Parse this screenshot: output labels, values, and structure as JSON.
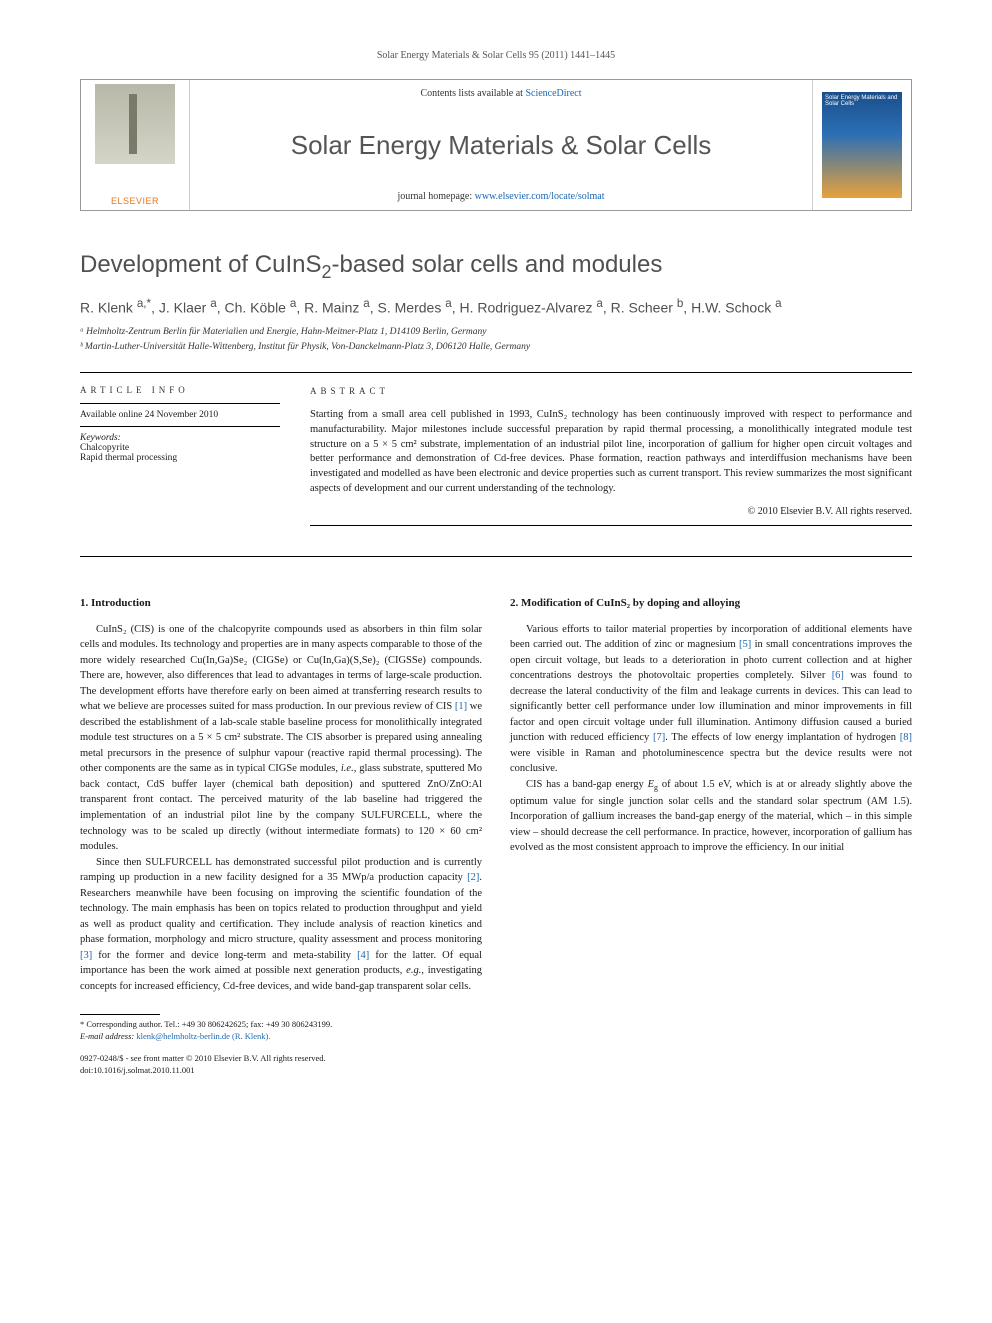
{
  "banner": {
    "citation": "Solar Energy Materials & Solar Cells 95 (2011) 1441–1445",
    "contents_text": "Contents lists available at ",
    "contents_link": "ScienceDirect",
    "journal_title": "Solar Energy Materials & Solar Cells",
    "homepage_text": "journal homepage: ",
    "homepage_link": "www.elsevier.com/locate/solmat",
    "publisher": "ELSEVIER",
    "cover_text": "Solar Energy Materials and Solar Cells"
  },
  "article": {
    "title_pre": "Development of CuInS",
    "title_sub": "2",
    "title_post": "-based solar cells and modules",
    "authors_html": "R. Klenk <sup>a,*</sup>, J. Klaer <sup>a</sup>, Ch. Köble <sup>a</sup>, R. Mainz <sup>a</sup>, S. Merdes <sup>a</sup>, H. Rodriguez-Alvarez <sup>a</sup>, R. Scheer <sup>b</sup>, H.W. Schock <sup>a</sup>",
    "affiliations": [
      "ᵃ Helmholtz-Zentrum Berlin für Materialien und Energie, Hahn-Meitner-Platz 1, D14109 Berlin, Germany",
      "ᵇ Martin-Luther-Universität Halle-Wittenberg, Institut für Physik, Von-Danckelmann-Platz 3, D06120 Halle, Germany"
    ]
  },
  "info": {
    "heading": "article info",
    "online": "Available online 24 November 2010",
    "keywords_label": "Keywords:",
    "keywords": [
      "Chalcopyrite",
      "Rapid thermal processing"
    ]
  },
  "abstract": {
    "heading": "abstract",
    "text": "Starting from a small area cell published in 1993, CuInS₂ technology has been continuously improved with respect to performance and manufacturability. Major milestones include successful preparation by rapid thermal processing, a monolithically integrated module test structure on a 5 × 5 cm² substrate, implementation of an industrial pilot line, incorporation of gallium for higher open circuit voltages and better performance and demonstration of Cd-free devices. Phase formation, reaction pathways and interdiffusion mechanisms have been investigated and modelled as have been electronic and device properties such as current transport. This review summarizes the most significant aspects of development and our current understanding of the technology.",
    "copyright": "© 2010 Elsevier B.V. All rights reserved."
  },
  "sections": {
    "s1_title": "1.  Introduction",
    "s1_p1": "CuInS₂ (CIS) is one of the chalcopyrite compounds used as absorbers in thin film solar cells and modules. Its technology and properties are in many aspects comparable to those of the more widely researched Cu(In,Ga)Se₂ (CIGSe) or Cu(In,Ga)(S,Se)₂ (CIGSSe) compounds. There are, however, also differences that lead to advantages in terms of large-scale production. The development efforts have therefore early on been aimed at transferring research results to what we believe are processes suited for mass production. In our previous review of CIS [1] we described the establishment of a lab-scale stable baseline process for monolithically integrated module test structures on a 5 × 5 cm² substrate. The CIS absorber is prepared using annealing metal precursors in the presence of sulphur vapour (reactive rapid thermal processing). The other components are the same as in typical CIGSe modules, i.e., glass substrate, sputtered Mo back contact, CdS buffer layer (chemical bath deposition) and sputtered ZnO/ZnO:Al transparent front contact. The perceived maturity of the lab baseline had triggered the implementation of an industrial pilot line by the company SULFURCELL, where the technology was to be scaled up directly (without intermediate formats) to 120 × 60 cm² modules.",
    "s1_p2": "Since then SULFURCELL has demonstrated successful pilot production and is currently ramping up production in a new facility designed for a 35 MWp/a production capacity [2]. Researchers meanwhile have been focusing on improving the scientific foundation of the technology. The main emphasis has been on topics related to production throughput and yield as well as product quality and certification. They include analysis of reaction kinetics and phase formation, morphology and micro structure, quality assessment and process monitoring [3] for the former and device long-term and meta-stability [4] for the latter. Of equal importance has been the work aimed at possible next generation products, e.g., investigating concepts for increased efficiency, Cd-free devices, and wide band-gap transparent solar cells.",
    "s2_title": "2.  Modification of CuInS₂ by doping and alloying",
    "s2_p1": "Various efforts to tailor material properties by incorporation of additional elements have been carried out. The addition of zinc or magnesium [5] in small concentrations improves the open circuit voltage, but leads to a deterioration in photo current collection and at higher concentrations destroys the photovoltaic properties completely. Silver [6] was found to decrease the lateral conductivity of the film and leakage currents in devices. This can lead to significantly better cell performance under low illumination and minor improvements in fill factor and open circuit voltage under full illumination. Antimony diffusion caused a buried junction with reduced efficiency [7]. The effects of low energy implantation of hydrogen [8] were visible in Raman and photoluminescence spectra but the device results were not conclusive.",
    "s2_p2": "CIS has a band-gap energy Eg of about 1.5 eV, which is at or already slightly above the optimum value for single junction solar cells and the standard solar spectrum (AM 1.5). Incorporation of gallium increases the band-gap energy of the material, which – in this simple view – should decrease the cell performance. In practice, however, incorporation of gallium has evolved as the most consistent approach to improve the efficiency. In our initial"
  },
  "footnote": {
    "corr": "* Corresponding author. Tel.: +49 30 806242625; fax: +49 30 806243199.",
    "email_label": "E-mail address: ",
    "email": "klenk@helmholtz-berlin.de (R. Klenk).",
    "issn": "0927-0248/$ - see front matter © 2010 Elsevier B.V. All rights reserved.",
    "doi": "doi:10.1016/j.solmat.2010.11.001"
  },
  "refs": {
    "r1": "[1]",
    "r2": "[2]",
    "r3": "[3]",
    "r4": "[4]",
    "r5": "[5]",
    "r6": "[6]",
    "r7": "[7]",
    "r8": "[8]"
  }
}
